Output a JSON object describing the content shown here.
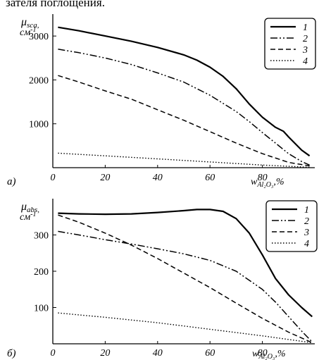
{
  "caption_fragment": "зателя поглощения.",
  "chart_data": [
    {
      "type": "line",
      "panel_label": "a)",
      "ylabel": {
        "symbol": "μ",
        "subscript": "sca",
        "unit": "см",
        "unit_power": "-1"
      },
      "xlabel": {
        "symbol": "w",
        "subscript": "Al₂O₃",
        "unit": "%"
      },
      "xlim": [
        0,
        100
      ],
      "ylim": [
        0,
        3500
      ],
      "x_ticks": [
        "0",
        "20",
        "40",
        "60",
        "80"
      ],
      "y_ticks": [
        "1000",
        "2000",
        "3000"
      ],
      "y_tick_values": [
        1000,
        2000,
        3000
      ],
      "x_tick_values": [
        0,
        20,
        40,
        60,
        80
      ],
      "legend_placement": "top-right",
      "series": [
        {
          "name": "1",
          "style": "solid",
          "points": [
            [
              2,
              3200
            ],
            [
              10,
              3120
            ],
            [
              20,
              3000
            ],
            [
              30,
              2880
            ],
            [
              40,
              2740
            ],
            [
              50,
              2570
            ],
            [
              55,
              2450
            ],
            [
              60,
              2290
            ],
            [
              65,
              2080
            ],
            [
              70,
              1800
            ],
            [
              75,
              1450
            ],
            [
              80,
              1150
            ],
            [
              85,
              920
            ],
            [
              88,
              830
            ],
            [
              90,
              700
            ],
            [
              95,
              400
            ],
            [
              98,
              270
            ]
          ]
        },
        {
          "name": "2",
          "style": "dashdotdot",
          "points": [
            [
              2,
              2700
            ],
            [
              10,
              2620
            ],
            [
              20,
              2500
            ],
            [
              30,
              2350
            ],
            [
              40,
              2160
            ],
            [
              50,
              1950
            ],
            [
              60,
              1650
            ],
            [
              70,
              1280
            ],
            [
              75,
              1050
            ],
            [
              80,
              800
            ],
            [
              85,
              560
            ],
            [
              90,
              320
            ],
            [
              95,
              140
            ],
            [
              98,
              60
            ]
          ]
        },
        {
          "name": "3",
          "style": "dashed",
          "points": [
            [
              2,
              2100
            ],
            [
              10,
              1950
            ],
            [
              20,
              1750
            ],
            [
              30,
              1560
            ],
            [
              40,
              1320
            ],
            [
              50,
              1080
            ],
            [
              60,
              820
            ],
            [
              70,
              560
            ],
            [
              80,
              320
            ],
            [
              90,
              120
            ],
            [
              98,
              40
            ]
          ]
        },
        {
          "name": "4",
          "style": "dotted",
          "points": [
            [
              2,
              330
            ],
            [
              20,
              270
            ],
            [
              40,
              200
            ],
            [
              60,
              130
            ],
            [
              80,
              60
            ],
            [
              98,
              10
            ]
          ]
        }
      ]
    },
    {
      "type": "line",
      "panel_label": "б)",
      "ylabel": {
        "symbol": "μ",
        "subscript": "abs",
        "unit": "см",
        "unit_power": "-1"
      },
      "xlabel": {
        "symbol": "w",
        "subscript": "Al₂O₃",
        "unit": "%"
      },
      "xlim": [
        0,
        100
      ],
      "ylim": [
        0,
        400
      ],
      "x_ticks": [
        "0",
        "20",
        "40",
        "60",
        "80"
      ],
      "y_ticks": [
        "100",
        "200",
        "300"
      ],
      "y_tick_values": [
        100,
        200,
        300
      ],
      "x_tick_values": [
        0,
        20,
        40,
        60,
        80
      ],
      "legend_placement": "top-right",
      "series": [
        {
          "name": "1",
          "style": "solid",
          "points": [
            [
              2,
              360
            ],
            [
              10,
              358
            ],
            [
              20,
              357
            ],
            [
              30,
              358
            ],
            [
              40,
              362
            ],
            [
              50,
              367
            ],
            [
              55,
              370
            ],
            [
              60,
              370
            ],
            [
              65,
              365
            ],
            [
              70,
              345
            ],
            [
              75,
              305
            ],
            [
              80,
              245
            ],
            [
              85,
              180
            ],
            [
              90,
              135
            ],
            [
              95,
              100
            ],
            [
              99,
              75
            ]
          ]
        },
        {
          "name": "2",
          "style": "dashdotdot",
          "points": [
            [
              2,
              310
            ],
            [
              10,
              300
            ],
            [
              20,
              287
            ],
            [
              30,
              275
            ],
            [
              40,
              262
            ],
            [
              50,
              248
            ],
            [
              60,
              230
            ],
            [
              70,
              200
            ],
            [
              80,
              150
            ],
            [
              85,
              115
            ],
            [
              90,
              75
            ],
            [
              95,
              35
            ],
            [
              99,
              5
            ]
          ]
        },
        {
          "name": "3",
          "style": "dashed",
          "points": [
            [
              2,
              355
            ],
            [
              10,
              335
            ],
            [
              20,
              305
            ],
            [
              30,
              272
            ],
            [
              40,
              235
            ],
            [
              50,
              195
            ],
            [
              60,
              155
            ],
            [
              70,
              112
            ],
            [
              80,
              70
            ],
            [
              90,
              32
            ],
            [
              99,
              3
            ]
          ]
        },
        {
          "name": "4",
          "style": "dotted",
          "points": [
            [
              2,
              85
            ],
            [
              20,
              73
            ],
            [
              40,
              58
            ],
            [
              60,
              40
            ],
            [
              80,
              22
            ],
            [
              99,
              3
            ]
          ]
        }
      ]
    }
  ]
}
